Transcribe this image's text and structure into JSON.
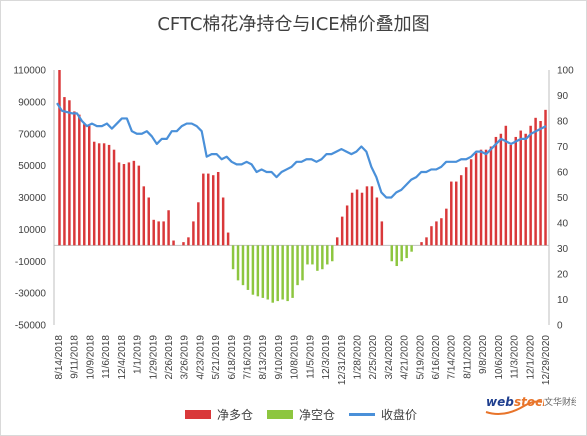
{
  "title": "CFTC棉花净持仓与ICE棉价叠加图",
  "colors": {
    "net_long": "#d9383a",
    "net_short": "#8dc63f",
    "close": "#4a90d9",
    "axis": "#bfbfbf"
  },
  "chart_data": {
    "type": "bar",
    "title": "CFTC棉花净持仓与ICE棉价叠加图",
    "left_axis": {
      "ylim": [
        -50000,
        110000
      ],
      "ticks": [
        "-50000",
        "-30000",
        "-10000",
        "10000",
        "30000",
        "50000",
        "70000",
        "90000",
        "110000"
      ]
    },
    "right_axis": {
      "ylim": [
        0,
        100
      ],
      "ticks": [
        "0",
        "10",
        "20",
        "30",
        "40",
        "50",
        "60",
        "70",
        "80",
        "90",
        "100"
      ]
    },
    "x_tick_labels": [
      "8/14/2018",
      "9/11/2018",
      "10/9/2018",
      "11/6/2018",
      "12/4/2018",
      "1/1/2019",
      "1/29/2019",
      "2/26/2019",
      "3/26/2019",
      "4/23/2019",
      "5/21/2019",
      "6/18/2019",
      "7/16/2019",
      "8/13/2019",
      "9/10/2019",
      "10/8/2019",
      "11/5/2019",
      "12/3/2019",
      "12/31/2019",
      "1/28/2020",
      "2/25/2020",
      "3/24/2020",
      "4/21/2020",
      "5/19/2020",
      "6/16/2020",
      "7/14/2020",
      "8/11/2020",
      "9/8/2020",
      "10/6/2020",
      "11/3/2020",
      "12/1/2020",
      "12/29/2020"
    ],
    "legend": [
      "净多仓",
      "净空仓",
      "收盘价"
    ],
    "series": [
      {
        "name": "净多仓/净空仓",
        "values": [
          110000,
          93000,
          91000,
          84000,
          82000,
          76000,
          75000,
          65000,
          64000,
          64000,
          63000,
          60000,
          52000,
          51000,
          52000,
          53000,
          50000,
          37000,
          30000,
          16000,
          15000,
          15000,
          22000,
          3000,
          0,
          2000,
          5000,
          15000,
          27000,
          45000,
          45000,
          44000,
          46000,
          30000,
          8000,
          -15000,
          -22000,
          -25000,
          -28000,
          -31000,
          -32000,
          -33000,
          -34000,
          -36000,
          -35000,
          -34000,
          -35000,
          -33000,
          -25000,
          -22000,
          -12000,
          -12000,
          -16000,
          -15000,
          -12000,
          -10000,
          5000,
          18000,
          25000,
          33000,
          35000,
          33000,
          37000,
          37000,
          30000,
          15000,
          0,
          -10000,
          -13000,
          -10000,
          -8000,
          -4000,
          0,
          2000,
          5000,
          12000,
          15000,
          17000,
          23000,
          40000,
          40000,
          44000,
          49000,
          54000,
          58000,
          60000,
          60000,
          62000,
          68000,
          70000,
          75000,
          63000,
          68000,
          72000,
          70000,
          75000,
          80000,
          78000,
          85000
        ]
      },
      {
        "name": "收盘价",
        "values": [
          87,
          84,
          83.5,
          83,
          83,
          80,
          78,
          79,
          78,
          78,
          79,
          77,
          79,
          81,
          81,
          76,
          75,
          75,
          76,
          74,
          71,
          73,
          73,
          76,
          76,
          78,
          79,
          79,
          78,
          76,
          66,
          67,
          67,
          65,
          66,
          64,
          63,
          63,
          64,
          63,
          60,
          61,
          60,
          60,
          58,
          60,
          61,
          62,
          64,
          64,
          65,
          65,
          64,
          65,
          67,
          67,
          68,
          69,
          68,
          67,
          68,
          70,
          68,
          62,
          58,
          52,
          50,
          50,
          52,
          53,
          55,
          57,
          58,
          60,
          60,
          61,
          61,
          62,
          64,
          64,
          64,
          65,
          65,
          66,
          68,
          68,
          67,
          69,
          71,
          73,
          72,
          71,
          72,
          73,
          73,
          75,
          76,
          77,
          78
        ]
      }
    ]
  }
}
